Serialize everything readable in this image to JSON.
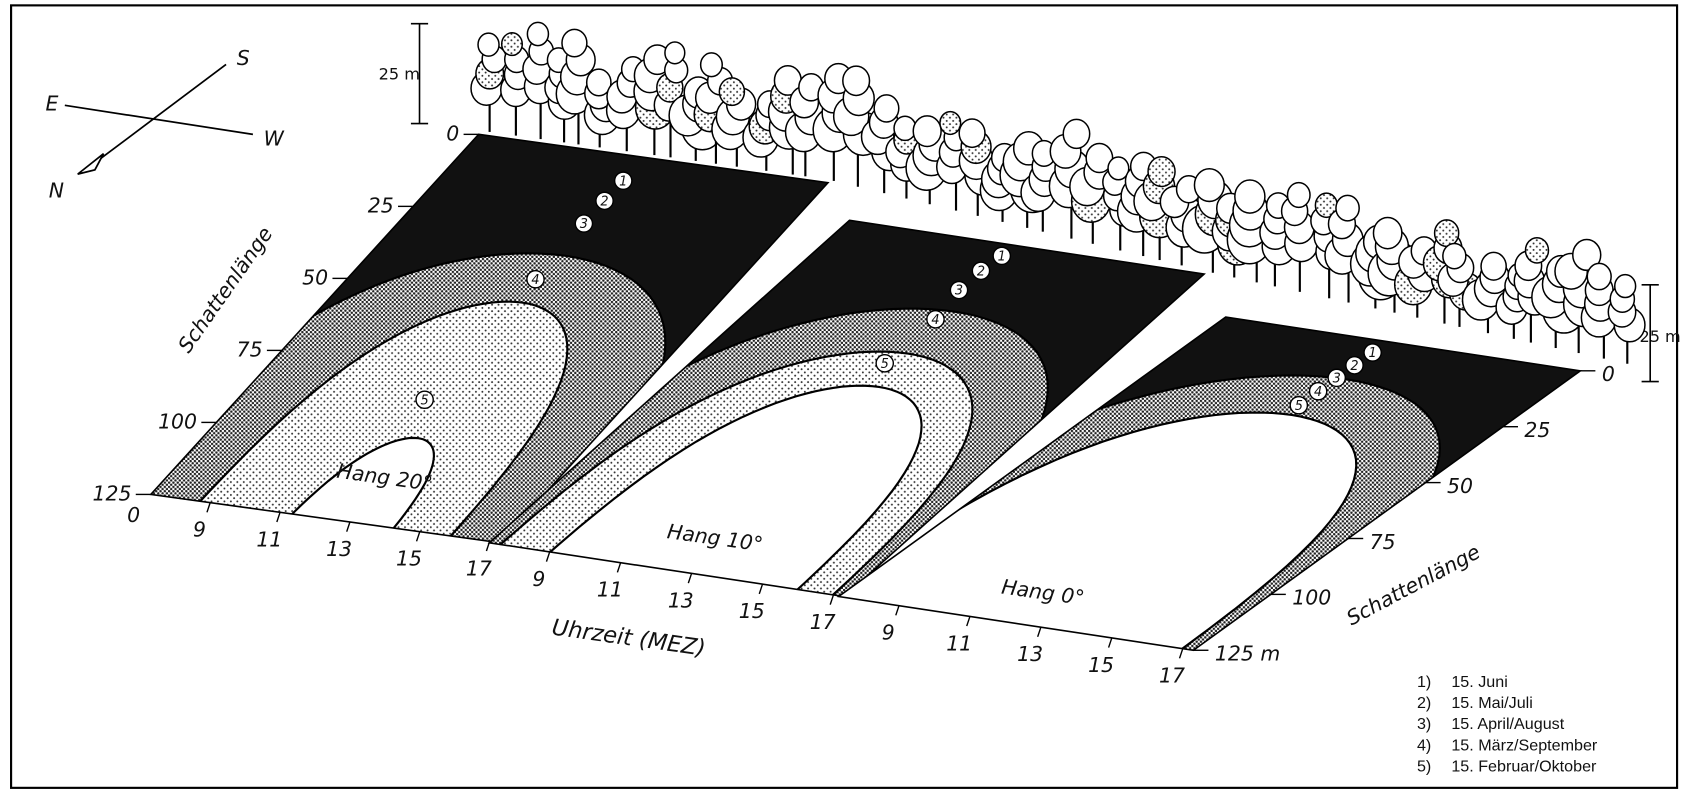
{
  "compass": {
    "east": "E",
    "south": "S",
    "west": "W",
    "north": "N"
  },
  "scale_bars": [
    "25 m",
    "25 m"
  ],
  "left_axis": {
    "label": "Schattenlänge",
    "origin": "0",
    "ticks": [
      "0",
      "25",
      "50",
      "75",
      "100",
      "125"
    ]
  },
  "right_axis": {
    "label": "Schattenlänge",
    "ticks": [
      "0",
      "25",
      "50",
      "75",
      "100",
      "125 m"
    ]
  },
  "x_axis_label": "Uhrzeit (MEZ)",
  "panels": [
    {
      "label": "Hang 20°",
      "hours": [
        "9",
        "11",
        "13",
        "15",
        "17"
      ],
      "markers": [
        "1",
        "2",
        "3",
        "4",
        "5"
      ]
    },
    {
      "label": "Hang 10°",
      "hours": [
        "9",
        "11",
        "13",
        "15",
        "17"
      ],
      "markers": [
        "1",
        "2",
        "3",
        "4",
        "5"
      ]
    },
    {
      "label": "Hang 0°",
      "hours": [
        "9",
        "11",
        "13",
        "15",
        "17"
      ],
      "markers": [
        "1",
        "2",
        "3",
        "4",
        "5"
      ]
    }
  ],
  "legend": [
    {
      "number": "1)",
      "text": "15. Juni"
    },
    {
      "number": "2)",
      "text": "15. Mai/Juli"
    },
    {
      "number": "3)",
      "text": "15. April/August"
    },
    {
      "number": "4)",
      "text": "15. März/September"
    },
    {
      "number": "5)",
      "text": "15. Februar/Oktober"
    }
  ]
}
